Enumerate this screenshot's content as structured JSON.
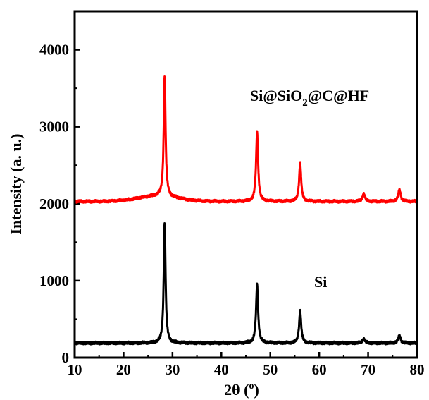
{
  "chart_data": {
    "type": "line",
    "title": "",
    "xlabel": "2θ (°)",
    "xlabel_parts": {
      "main": "2θ (",
      "degree": "o",
      "close": ")"
    },
    "ylabel": "Intensity (a. u.)",
    "xlim": [
      10,
      80
    ],
    "ylim": [
      0,
      4500
    ],
    "xticks": [
      10,
      20,
      30,
      40,
      50,
      60,
      70,
      80
    ],
    "yticks": [
      0,
      1000,
      2000,
      3000,
      4000
    ],
    "grid": false,
    "legend": "none",
    "series": [
      {
        "name": "Si",
        "label_parts": {
          "text": "Si"
        },
        "color": "#000000",
        "baseline": 190,
        "background": {
          "amp": 0,
          "center": 27,
          "width": 4
        },
        "peaks": [
          {
            "x": 28.4,
            "height": 1570,
            "width": 0.22
          },
          {
            "x": 47.3,
            "height": 760,
            "width": 0.25
          },
          {
            "x": 56.1,
            "height": 420,
            "width": 0.25
          },
          {
            "x": 69.1,
            "height": 55,
            "width": 0.3
          },
          {
            "x": 76.4,
            "height": 95,
            "width": 0.3
          }
        ]
      },
      {
        "name": "Si@SiO2@C@HF",
        "label_parts": {
          "main": "Si@SiO",
          "sub": "2",
          "rest": "@C@HF"
        },
        "color": "#ff0000",
        "baseline": 2030,
        "background": {
          "amp": 70,
          "center": 27,
          "width": 4
        },
        "peaks": [
          {
            "x": 28.4,
            "height": 1570,
            "width": 0.22
          },
          {
            "x": 47.3,
            "height": 900,
            "width": 0.25
          },
          {
            "x": 56.1,
            "height": 500,
            "width": 0.25
          },
          {
            "x": 69.1,
            "height": 100,
            "width": 0.3
          },
          {
            "x": 76.4,
            "height": 150,
            "width": 0.3
          }
        ]
      }
    ]
  }
}
